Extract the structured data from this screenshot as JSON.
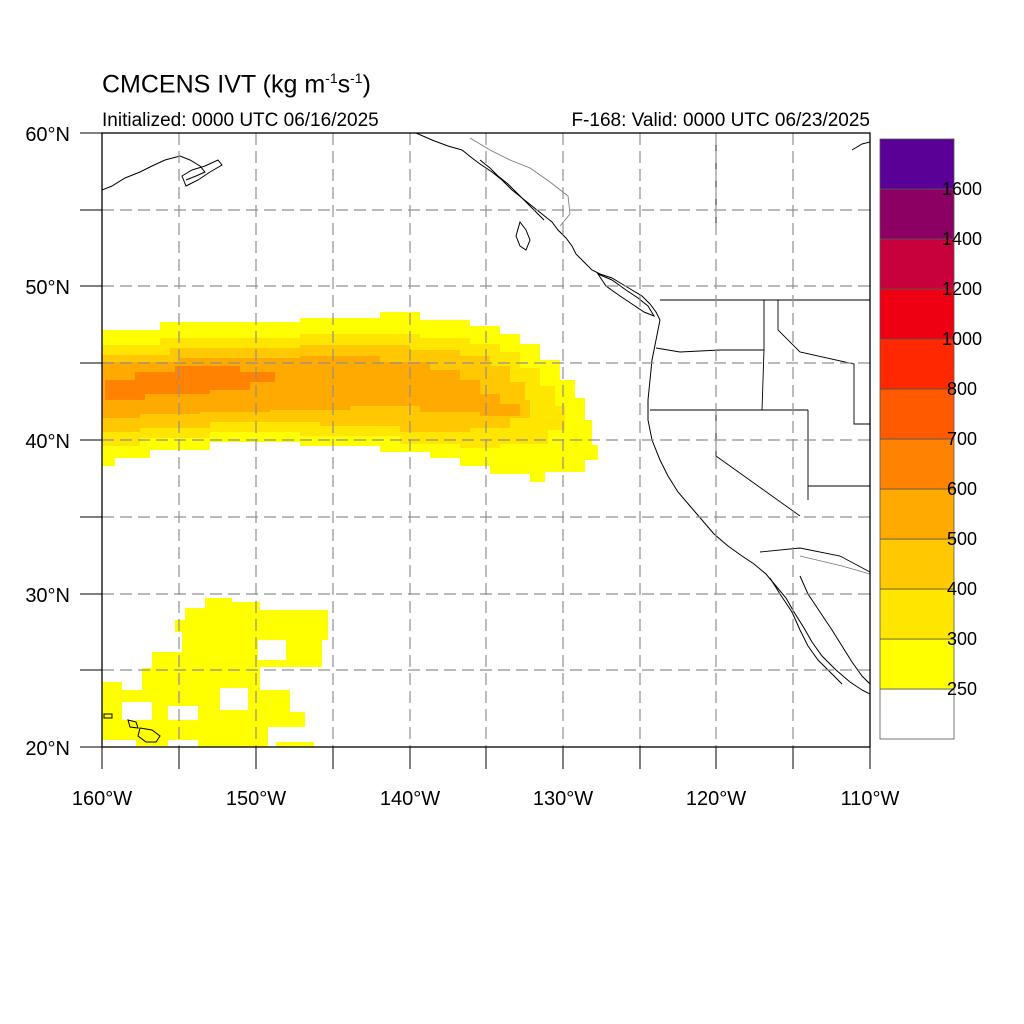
{
  "title": {
    "main": "CMCENS IVT (kg m",
    "sup1": "-1",
    "mid": "s",
    "sup2": "-1",
    "end": ")"
  },
  "subtitle_left": "Initialized: 0000 UTC 06/16/2025",
  "subtitle_right": "F-168: Valid: 0000 UTC 06/23/2025",
  "lat_labels": [
    "60°N",
    "50°N",
    "40°N",
    "30°N",
    "20°N"
  ],
  "lon_labels": [
    "160°W",
    "150°W",
    "140°W",
    "130°W",
    "120°W",
    "110°W"
  ],
  "colorbar": {
    "labels": [
      "250",
      "300",
      "400",
      "500",
      "600",
      "700",
      "800",
      "1000",
      "1200",
      "1400",
      "1600"
    ],
    "colors": [
      "#ffffff",
      "#ffff00",
      "#ffe600",
      "#ffc800",
      "#ffaa00",
      "#ff8200",
      "#ff5a00",
      "#ff2800",
      "#ee0012",
      "#c8003c",
      "#8c0064",
      "#5a0096"
    ]
  }
}
